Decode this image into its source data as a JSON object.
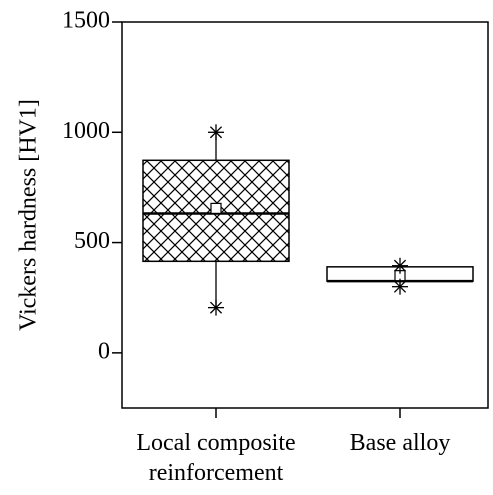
{
  "chart_data": {
    "type": "box",
    "y_label": "Vickers hardness [HV1]",
    "categories": [
      "Local composite reinforcement",
      "Base alloy"
    ],
    "boxes": [
      {
        "min": 205,
        "q1": 415,
        "median": 632,
        "q3": 873,
        "max": 1000,
        "mean": 655,
        "hatch": "cross"
      },
      {
        "min": 300,
        "q1": 325,
        "median": 325,
        "q3": 390,
        "max": 395,
        "mean": 350,
        "hatch": "none"
      }
    ],
    "ylim": [
      -250,
      1500
    ],
    "yticks": [
      0,
      500,
      1000,
      1500
    ]
  }
}
